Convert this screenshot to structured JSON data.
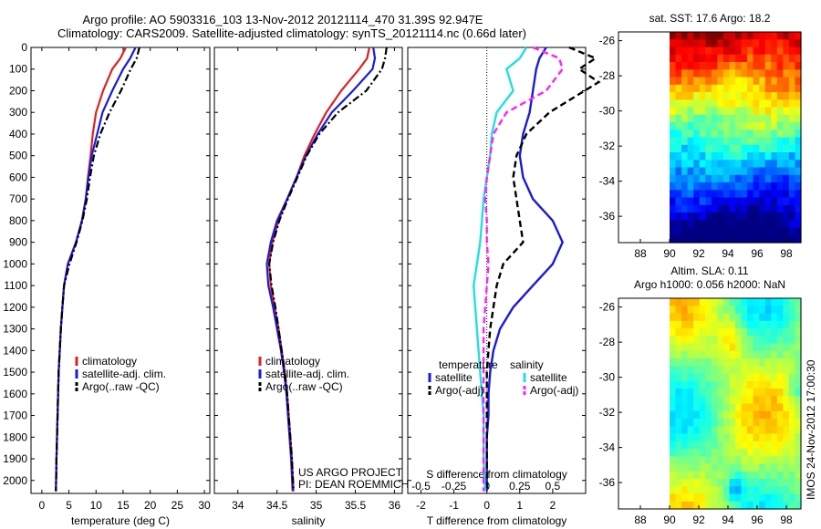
{
  "title_line1": "Argo profile: AO 5903316_103 13-Nov-2012 20121114_470 31.39S 92.947E",
  "title_line2": "Climatology: CARS2009. Satellite-adjusted climatology: synTS_20121114.nc (0.66d later)",
  "colors": {
    "climatology": "#e02020",
    "satellite": "#1a1ae0",
    "argo": "#000000",
    "sat_salinity": "#20e0e0",
    "argo_salinity": "#ff20ff"
  },
  "chart_data": [
    {
      "type": "line",
      "name_ref": "temperature",
      "xlabel": "temperature (deg C)",
      "ylabel": "",
      "xlim": [
        -2,
        31
      ],
      "ylim": [
        2060,
        0
      ],
      "y_inverted": true,
      "xticks": [
        0,
        5,
        10,
        15,
        20,
        25,
        30
      ],
      "yticks": [
        0,
        100,
        200,
        300,
        400,
        500,
        600,
        700,
        800,
        900,
        1000,
        1100,
        1200,
        1300,
        1400,
        1500,
        1600,
        1700,
        1800,
        1900,
        2000
      ],
      "legend": [
        "climatology",
        "satellite-adj. clim.",
        "Argo(..raw -QC)"
      ],
      "legend_position": "lower-center",
      "series": [
        {
          "name": "climatology",
          "style": "solid",
          "color": "#e02020",
          "x": [
            15.5,
            14.5,
            13.0,
            11.3,
            10.0,
            9.4,
            9.0,
            8.5,
            8.1,
            7.4,
            6.3,
            4.8,
            4.1,
            3.8,
            3.5,
            3.3,
            3.1,
            3.0,
            2.9,
            2.8,
            2.7,
            2.6
          ],
          "y": [
            0,
            50,
            100,
            200,
            300,
            400,
            500,
            600,
            700,
            800,
            900,
            1000,
            1100,
            1200,
            1300,
            1400,
            1500,
            1600,
            1700,
            1800,
            1900,
            2050
          ]
        },
        {
          "name": "satellite-adj. clim.",
          "style": "solid",
          "color": "#1a1ae0",
          "x": [
            17.3,
            16.3,
            15.0,
            13.0,
            11.2,
            10.2,
            9.2,
            8.6,
            8.1,
            7.4,
            6.3,
            4.8,
            4.1,
            3.8,
            3.5,
            3.3,
            3.1,
            3.0,
            2.9,
            2.8,
            2.7,
            2.6
          ],
          "y": [
            0,
            50,
            100,
            200,
            300,
            400,
            500,
            600,
            700,
            800,
            900,
            1000,
            1100,
            1200,
            1300,
            1400,
            1500,
            1600,
            1700,
            1800,
            1900,
            2050
          ]
        },
        {
          "name": "Argo(..raw -QC)",
          "style": "dashdot",
          "color": "#000000",
          "x": [
            18.0,
            17.5,
            16.4,
            14.6,
            12.5,
            10.8,
            9.6,
            8.9,
            8.3,
            7.5,
            6.4,
            5.1,
            4.1,
            3.8,
            3.5,
            3.3,
            3.1,
            3.0,
            2.9,
            2.8,
            2.7,
            2.6
          ],
          "y": [
            0,
            50,
            100,
            200,
            300,
            400,
            500,
            600,
            700,
            800,
            900,
            1000,
            1100,
            1200,
            1300,
            1400,
            1500,
            1600,
            1700,
            1800,
            1900,
            2050
          ]
        }
      ]
    },
    {
      "type": "line",
      "name_ref": "salinity",
      "xlabel": "salinity",
      "ylabel": "",
      "xlim": [
        33.7,
        36.1
      ],
      "ylim": [
        2060,
        0
      ],
      "y_inverted": true,
      "xticks": [
        34,
        34.5,
        35,
        35.5,
        36
      ],
      "legend": [
        "climatology",
        "satellite-adj. clim.",
        "Argo(..raw -QC)"
      ],
      "legend_position": "lower-center",
      "annotations": [
        "US ARGO PROJECT",
        "PI: DEAN ROEMMICH"
      ],
      "series": [
        {
          "name": "climatology",
          "style": "solid",
          "color": "#e02020",
          "x": [
            35.68,
            35.65,
            35.55,
            35.32,
            35.13,
            34.98,
            34.85,
            34.75,
            34.63,
            34.52,
            34.44,
            34.4,
            34.42,
            34.47,
            34.52,
            34.56,
            34.6,
            34.63,
            34.65,
            34.67,
            34.69,
            34.71
          ],
          "y": [
            0,
            50,
            100,
            200,
            300,
            400,
            500,
            600,
            700,
            800,
            900,
            1000,
            1100,
            1200,
            1300,
            1400,
            1500,
            1600,
            1700,
            1800,
            1900,
            2050
          ]
        },
        {
          "name": "satellite-adj. clim.",
          "style": "solid",
          "color": "#1a1ae0",
          "x": [
            35.73,
            35.75,
            35.72,
            35.47,
            35.2,
            35.02,
            34.87,
            34.75,
            34.63,
            34.5,
            34.42,
            34.37,
            34.39,
            34.45,
            34.5,
            34.55,
            34.59,
            34.62,
            34.64,
            34.66,
            34.68,
            34.7
          ],
          "y": [
            0,
            50,
            100,
            200,
            300,
            400,
            500,
            600,
            700,
            800,
            900,
            1000,
            1100,
            1200,
            1300,
            1400,
            1500,
            1600,
            1700,
            1800,
            1900,
            2050
          ]
        },
        {
          "name": "Argo(..raw -QC)",
          "style": "dashdot",
          "color": "#000000",
          "x": [
            35.9,
            35.88,
            35.84,
            35.64,
            35.28,
            35.04,
            34.88,
            34.76,
            34.64,
            34.53,
            34.45,
            34.4,
            34.43,
            34.48,
            34.52,
            34.56,
            34.6,
            34.63,
            34.65,
            34.67,
            34.69,
            34.71
          ],
          "y": [
            0,
            50,
            100,
            200,
            300,
            400,
            500,
            600,
            700,
            800,
            900,
            1000,
            1100,
            1200,
            1300,
            1400,
            1500,
            1600,
            1700,
            1800,
            1900,
            2050
          ]
        }
      ]
    },
    {
      "type": "line",
      "name_ref": "difference",
      "xlabel": "T difference from climatology",
      "xlabel_top": "S difference from climatology",
      "xlim": [
        -2.4,
        3.0
      ],
      "ylim": [
        2060,
        0
      ],
      "y_inverted": true,
      "xticks": [
        -2,
        -1,
        0,
        1,
        2
      ],
      "xticks_top": [
        "-0.5",
        "-0.25",
        "0",
        "0.25",
        "0.5"
      ],
      "legend_left_title": "temperature",
      "legend_right_title": "salinity",
      "legend": [
        "satellite",
        "Argo(-adj)",
        "satellite",
        "Argo(-adj)"
      ],
      "series": [
        {
          "name": "temperature satellite",
          "style": "solid",
          "color": "#1a1ae0",
          "x": [
            1.8,
            1.6,
            1.5,
            1.4,
            1.3,
            1.1,
            1.0,
            1.1,
            1.4,
            2.0,
            2.3,
            2.0,
            1.4,
            0.8,
            0.4,
            0.2,
            0.1,
            0.05,
            0.05,
            0.0,
            0.0,
            0.0
          ],
          "y": [
            0,
            50,
            100,
            200,
            300,
            400,
            500,
            600,
            700,
            800,
            900,
            1000,
            1100,
            1200,
            1300,
            1400,
            1500,
            1600,
            1700,
            1800,
            1900,
            2050
          ]
        },
        {
          "name": "temperature Argo(-adj)",
          "style": "dashed",
          "color": "#000000",
          "x": [
            2.5,
            3.3,
            2.8,
            3.4,
            1.9,
            1.2,
            0.9,
            0.8,
            0.9,
            1.0,
            1.1,
            0.5,
            0.3,
            0.2,
            0.1,
            0.05,
            0.0,
            0.0,
            0.0,
            0.0,
            0.0,
            0.0
          ],
          "y": [
            0,
            50,
            100,
            160,
            300,
            400,
            500,
            600,
            700,
            800,
            900,
            1000,
            1100,
            1200,
            1300,
            1400,
            1500,
            1600,
            1700,
            1800,
            1900,
            2050
          ]
        },
        {
          "name": "salinity satellite",
          "style": "solid",
          "color": "#20e0e0",
          "x": [
            1.2,
            1.0,
            0.6,
            0.8,
            0.3,
            0.15,
            0.1,
            0.0,
            -0.1,
            -0.15,
            -0.2,
            -0.3,
            -0.4,
            -0.35,
            -0.3,
            -0.25,
            -0.2,
            -0.15,
            -0.1,
            -0.1,
            -0.1,
            -0.05
          ],
          "y": [
            0,
            50,
            100,
            200,
            300,
            400,
            500,
            600,
            700,
            800,
            900,
            1000,
            1100,
            1200,
            1300,
            1400,
            1500,
            1600,
            1700,
            1800,
            1900,
            2050
          ]
        },
        {
          "name": "salinity Argo(-adj)",
          "style": "dashed",
          "color": "#ff20ff",
          "x": [
            1.4,
            2.2,
            2.3,
            1.8,
            0.6,
            0.2,
            0.1,
            0.0,
            -0.05,
            0.0,
            0.0,
            0.05,
            0.0,
            -0.05,
            -0.1,
            -0.1,
            -0.1,
            -0.1,
            -0.1,
            -0.1,
            -0.1,
            -0.1
          ],
          "y": [
            0,
            50,
            100,
            200,
            300,
            400,
            500,
            600,
            700,
            800,
            900,
            1000,
            1100,
            1200,
            1300,
            1400,
            1500,
            1600,
            1700,
            1800,
            1900,
            2050
          ]
        }
      ]
    },
    {
      "type": "heatmap",
      "name_ref": "sst_map",
      "title": "sat. SST: 17.6  Argo: 18.2",
      "xticks": [
        88,
        90,
        92,
        94,
        96,
        98
      ],
      "yticks": [
        -26,
        -28,
        -30,
        -32,
        -34,
        -36
      ],
      "xlim": [
        86.5,
        99
      ],
      "ylim": [
        -37.5,
        -25.5
      ],
      "data_start_lon": 90,
      "marker": {
        "lon": 92.947,
        "lat": -31.39
      }
    },
    {
      "type": "heatmap",
      "name_ref": "sla_map",
      "title_lines": [
        "Altim. SLA: 0.11",
        "Argo h1000: 0.056 h2000: NaN"
      ],
      "xticks": [
        88,
        90,
        92,
        94,
        96,
        98
      ],
      "yticks": [
        -26,
        -28,
        -30,
        -32,
        -34,
        -36
      ],
      "xlim": [
        86.5,
        99
      ],
      "ylim": [
        -37.5,
        -25.5
      ],
      "data_start_lon": 90,
      "marker": {
        "lon": 92.947,
        "lat": -31.39
      }
    }
  ],
  "side_label": "IMOS 24-Nov-2012 17:00:30"
}
